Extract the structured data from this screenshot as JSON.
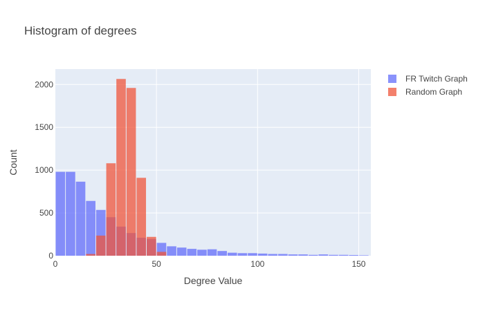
{
  "chart_data": {
    "type": "bar",
    "mode": "overlay-histogram",
    "title": "Histogram of degrees",
    "xlabel": "Degree Value",
    "ylabel": "Count",
    "xlim": [
      0,
      156
    ],
    "ylim": [
      0,
      2180
    ],
    "bin_width": 5,
    "x_ticks": [
      0,
      50,
      100,
      150
    ],
    "y_ticks": [
      0,
      500,
      1000,
      1500,
      2000
    ],
    "grid": true,
    "legend_position": "top-right",
    "series": [
      {
        "name": "FR Twitch Graph",
        "color": "#636efa",
        "opacity": 0.75,
        "x": [
          0,
          5,
          10,
          15,
          20,
          25,
          30,
          35,
          40,
          45,
          50,
          55,
          60,
          65,
          70,
          75,
          80,
          85,
          90,
          95,
          100,
          105,
          110,
          115,
          120,
          125,
          130,
          135,
          140,
          145,
          150
        ],
        "values": [
          980,
          980,
          865,
          640,
          535,
          450,
          340,
          265,
          210,
          195,
          150,
          110,
          95,
          80,
          70,
          75,
          55,
          35,
          30,
          30,
          25,
          20,
          20,
          15,
          15,
          10,
          15,
          10,
          10,
          8,
          5
        ]
      },
      {
        "name": "Random Graph",
        "color": "#ef553b",
        "opacity": 0.75,
        "x": [
          15,
          20,
          25,
          30,
          35,
          40,
          45,
          50
        ],
        "values": [
          20,
          235,
          1080,
          2065,
          1960,
          910,
          220,
          45
        ]
      }
    ]
  }
}
